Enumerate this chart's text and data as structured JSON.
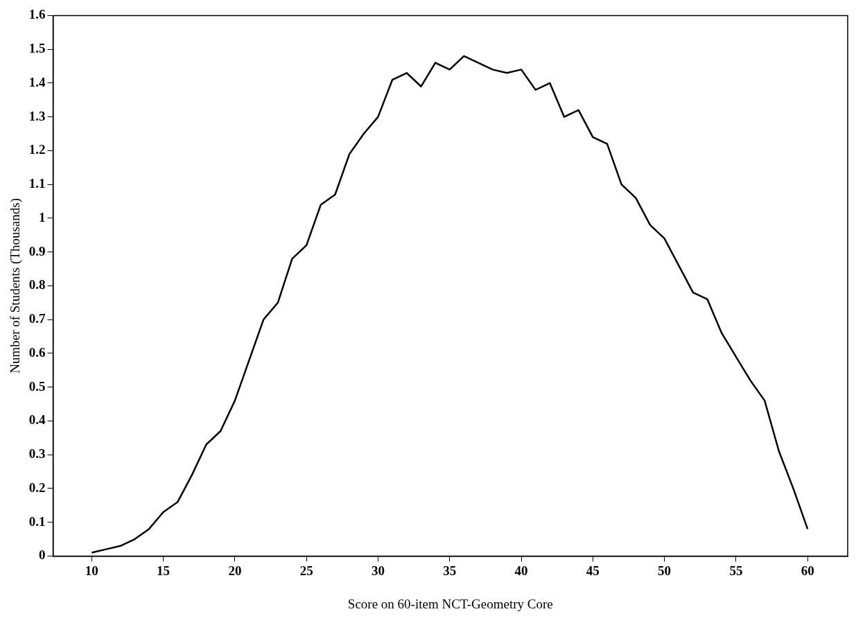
{
  "chart_data": {
    "type": "line",
    "xlabel": "Score on 60-item NCT-Geometry Core",
    "ylabel": "Number of Students (Thousands)",
    "x": [
      10,
      11,
      12,
      13,
      14,
      15,
      16,
      17,
      18,
      19,
      20,
      21,
      22,
      23,
      24,
      25,
      26,
      27,
      28,
      29,
      30,
      31,
      32,
      33,
      34,
      35,
      36,
      37,
      38,
      39,
      40,
      41,
      42,
      43,
      44,
      45,
      46,
      47,
      48,
      49,
      50,
      51,
      52,
      53,
      54,
      55,
      56,
      57,
      58,
      59,
      60
    ],
    "series": [
      {
        "color": "#000000",
        "values": [
          0.01,
          0.02,
          0.03,
          0.05,
          0.08,
          0.13,
          0.16,
          0.24,
          0.33,
          0.37,
          0.46,
          0.58,
          0.7,
          0.75,
          0.88,
          0.92,
          1.04,
          1.07,
          1.19,
          1.25,
          1.3,
          1.41,
          1.43,
          1.39,
          1.46,
          1.44,
          1.48,
          1.46,
          1.44,
          1.43,
          1.44,
          1.38,
          1.4,
          1.3,
          1.32,
          1.24,
          1.22,
          1.1,
          1.06,
          0.98,
          0.94,
          0.86,
          0.78,
          0.76,
          0.66,
          0.59,
          0.52,
          0.46,
          0.31,
          0.2,
          0.08
        ]
      }
    ],
    "xlim": [
      7.3,
      62.8
    ],
    "xticks": [
      10,
      15,
      20,
      25,
      30,
      35,
      40,
      45,
      50,
      55,
      60
    ],
    "ylim": [
      0,
      1.6
    ],
    "yticks": [
      0,
      0.1,
      0.2,
      0.3,
      0.4,
      0.5,
      0.6,
      0.7,
      0.8,
      0.9,
      1,
      1.1,
      1.2,
      1.3,
      1.4,
      1.5,
      1.6
    ],
    "grid": false,
    "legend": false,
    "marker": "none",
    "line_style": "solid"
  }
}
